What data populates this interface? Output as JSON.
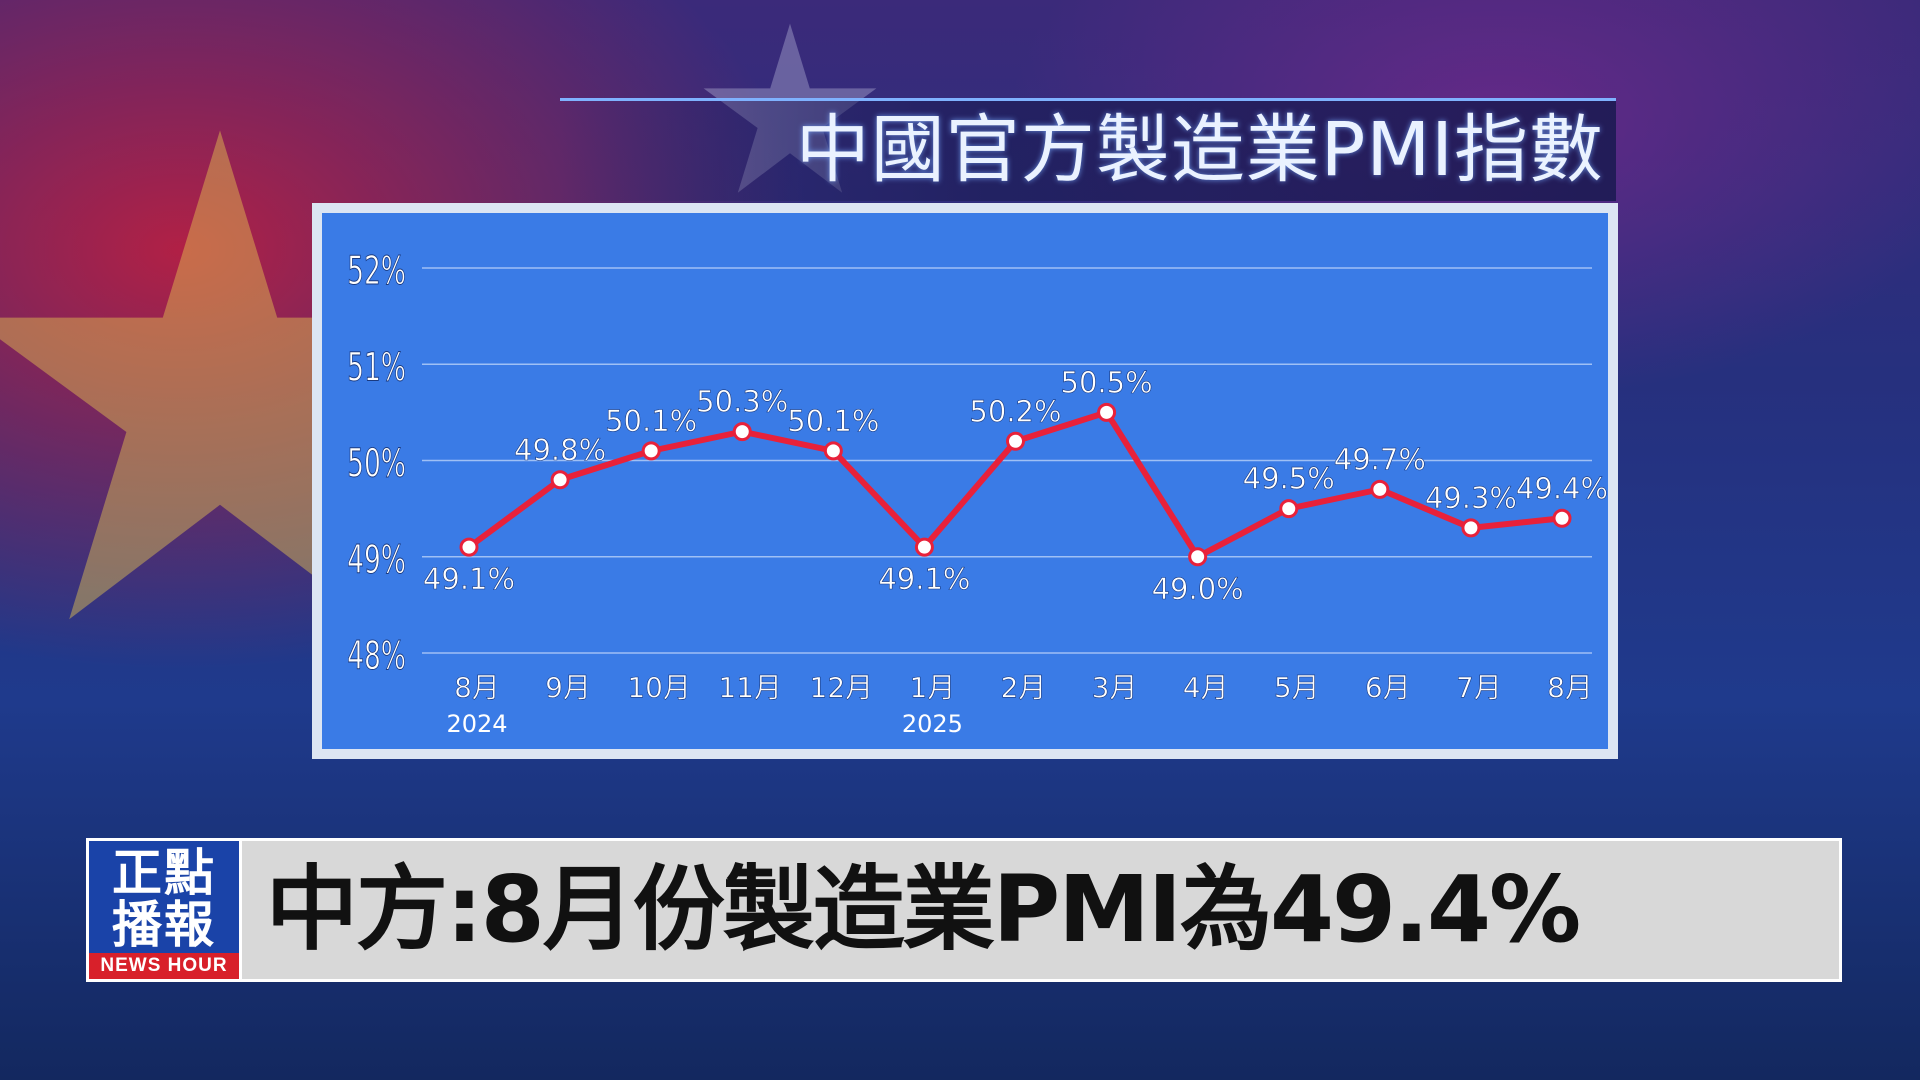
{
  "title": "中國官方製造業PMI指數",
  "logo": {
    "chinese": "正點播報",
    "english": "NEWS HOUR"
  },
  "headline": "中方:8月份製造業PMI為49.4%",
  "colors": {
    "plot_background": "#3a7be6",
    "line": "#e8213a",
    "marker_fill": "#ffffff",
    "gridline": "#9fc0f5",
    "logo_background": "#1a43a8",
    "logo_strip": "#d8202a",
    "lower_third_background": "#d8d8d8"
  },
  "chart_data": {
    "type": "line",
    "title": "中國官方製造業PMI指數",
    "categories": [
      "8月",
      "9月",
      "10月",
      "11月",
      "12月",
      "1月",
      "2月",
      "3月",
      "4月",
      "5月",
      "6月",
      "7月",
      "8月"
    ],
    "year_labels": [
      {
        "index": 0,
        "label": "2024"
      },
      {
        "index": 5,
        "label": "2025"
      }
    ],
    "values": [
      49.1,
      49.8,
      50.1,
      50.3,
      50.1,
      49.1,
      50.2,
      50.5,
      49.0,
      49.5,
      49.7,
      49.3,
      49.4
    ],
    "data_labels": [
      "49.1%",
      "49.8%",
      "50.1%",
      "50.3%",
      "50.1%",
      "49.1%",
      "50.2%",
      "50.5%",
      "49.0%",
      "49.5%",
      "49.7%",
      "49.3%",
      "49.4%"
    ],
    "label_position": [
      "below",
      "above",
      "above",
      "above",
      "above",
      "below",
      "above",
      "above",
      "below",
      "above",
      "above",
      "above",
      "above"
    ],
    "ylim": [
      48,
      52
    ],
    "yticks": [
      48,
      49,
      50,
      51,
      52
    ],
    "ytick_labels": [
      "48%",
      "49%",
      "50%",
      "51%",
      "52%"
    ],
    "grid": true,
    "xlabel": "",
    "ylabel": ""
  }
}
